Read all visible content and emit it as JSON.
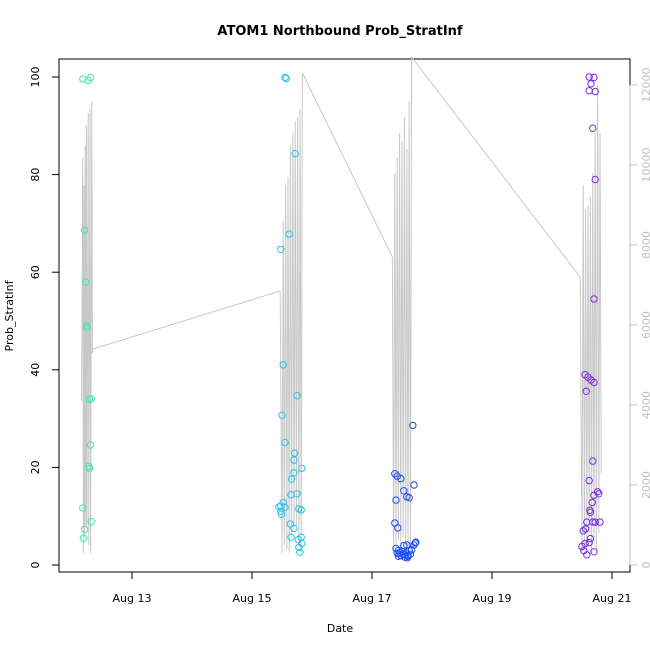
{
  "chart_data": {
    "type": "scatter",
    "title": "ATOM1 Northbound Prob_StratInf",
    "xlabel": "Date",
    "ylabel": "Prob_StratInf",
    "x_ticks": [
      {
        "day": 13,
        "label": "Aug 13"
      },
      {
        "day": 15,
        "label": "Aug 15"
      },
      {
        "day": 17,
        "label": "Aug 17"
      },
      {
        "day": 19,
        "label": "Aug 19"
      },
      {
        "day": 21,
        "label": "Aug 21"
      }
    ],
    "xlim": [
      12.0,
      21.2
    ],
    "ylim": [
      0,
      100
    ],
    "y_ticks": [
      0,
      20,
      40,
      60,
      80,
      100
    ],
    "y2lim": [
      0,
      12500
    ],
    "y2_ticks": [
      0,
      2000,
      4000,
      6000,
      8000,
      10000,
      12000
    ],
    "line_color": "#c8c8c8",
    "groups": [
      {
        "color": "#3be8b0",
        "points": [
          [
            12.18,
            99.6
          ],
          [
            12.27,
            99.3
          ],
          [
            12.31,
            99.9
          ],
          [
            12.21,
            68.6
          ],
          [
            12.23,
            58.0
          ],
          [
            12.24,
            49.0
          ],
          [
            12.25,
            48.6
          ],
          [
            12.29,
            33.9
          ],
          [
            12.32,
            34.1
          ],
          [
            12.31,
            24.6
          ],
          [
            12.28,
            20.2
          ],
          [
            12.29,
            19.8
          ],
          [
            12.18,
            11.7
          ],
          [
            12.32,
            8.9
          ],
          [
            12.21,
            7.3
          ],
          [
            12.19,
            5.5
          ]
        ],
        "line": [
          [
            12.16,
            4100
          ],
          [
            12.18,
            10200
          ],
          [
            12.19,
            300
          ],
          [
            12.2,
            9500
          ],
          [
            12.21,
            700
          ],
          [
            12.22,
            10500
          ],
          [
            12.23,
            1000
          ],
          [
            12.24,
            11000
          ],
          [
            12.25,
            900
          ],
          [
            12.27,
            11300
          ],
          [
            12.28,
            500
          ],
          [
            12.3,
            11400
          ],
          [
            12.31,
            300
          ],
          [
            12.33,
            11600
          ],
          [
            12.34,
            5300
          ],
          [
            12.35,
            5400
          ]
        ]
      },
      {
        "color": "#2ac2ec",
        "points": [
          [
            15.55,
            99.9
          ],
          [
            15.57,
            99.7
          ],
          [
            15.72,
            84.3
          ],
          [
            15.62,
            67.8
          ],
          [
            15.48,
            64.7
          ],
          [
            15.52,
            41.0
          ],
          [
            15.75,
            34.7
          ],
          [
            15.5,
            30.7
          ],
          [
            15.55,
            25.1
          ],
          [
            15.71,
            22.9
          ],
          [
            15.7,
            21.5
          ],
          [
            15.83,
            19.8
          ],
          [
            15.7,
            18.9
          ],
          [
            15.66,
            17.6
          ],
          [
            15.75,
            14.6
          ],
          [
            15.65,
            14.4
          ],
          [
            15.52,
            12.8
          ],
          [
            15.48,
            12.1
          ],
          [
            15.55,
            11.8
          ],
          [
            15.45,
            11.9
          ],
          [
            15.78,
            11.5
          ],
          [
            15.82,
            11.3
          ],
          [
            15.48,
            11.0
          ],
          [
            15.49,
            10.4
          ],
          [
            15.64,
            8.4
          ],
          [
            15.7,
            7.5
          ],
          [
            15.65,
            5.7
          ],
          [
            15.77,
            5.2
          ],
          [
            15.82,
            5.7
          ],
          [
            15.83,
            4.4
          ],
          [
            15.78,
            3.6
          ],
          [
            15.8,
            2.6
          ]
        ],
        "line": [
          [
            15.47,
            6850
          ],
          [
            15.5,
            300
          ],
          [
            15.52,
            8600
          ],
          [
            15.54,
            500
          ],
          [
            15.56,
            9500
          ],
          [
            15.58,
            400
          ],
          [
            15.6,
            9700
          ],
          [
            15.62,
            300
          ],
          [
            15.64,
            10500
          ],
          [
            15.66,
            700
          ],
          [
            15.68,
            10800
          ],
          [
            15.7,
            900
          ],
          [
            15.72,
            11100
          ],
          [
            15.74,
            1000
          ],
          [
            15.76,
            11200
          ],
          [
            15.78,
            500
          ],
          [
            15.8,
            11400
          ],
          [
            15.82,
            300
          ],
          [
            15.84,
            12300
          ]
        ]
      },
      {
        "color": "#1f4ff0",
        "points": [
          [
            17.68,
            28.6
          ],
          [
            17.38,
            18.7
          ],
          [
            17.42,
            18.2
          ],
          [
            17.48,
            17.7
          ],
          [
            17.7,
            16.4
          ],
          [
            17.53,
            15.2
          ],
          [
            17.58,
            14.0
          ],
          [
            17.62,
            13.8
          ],
          [
            17.4,
            13.3
          ],
          [
            17.38,
            8.6
          ],
          [
            17.43,
            7.6
          ],
          [
            17.73,
            4.7
          ],
          [
            17.72,
            4.5
          ],
          [
            17.7,
            4.1
          ],
          [
            17.58,
            4.1
          ],
          [
            17.53,
            4.0
          ],
          [
            17.4,
            3.4
          ],
          [
            17.44,
            3.0
          ],
          [
            17.66,
            3.1
          ],
          [
            17.62,
            3.0
          ],
          [
            17.5,
            2.8
          ],
          [
            17.47,
            2.6
          ],
          [
            17.57,
            2.5
          ],
          [
            17.42,
            2.4
          ],
          [
            17.45,
            2.3
          ],
          [
            17.52,
            2.2
          ],
          [
            17.55,
            2.1
          ],
          [
            17.6,
            2.0
          ],
          [
            17.64,
            2.2
          ],
          [
            17.48,
            1.9
          ],
          [
            17.44,
            1.8
          ],
          [
            17.55,
            1.6
          ],
          [
            17.59,
            1.5
          ],
          [
            17.6,
            1.8
          ]
        ],
        "line": [
          [
            17.34,
            7700
          ],
          [
            17.36,
            300
          ],
          [
            17.38,
            9800
          ],
          [
            17.4,
            500
          ],
          [
            17.42,
            10200
          ],
          [
            17.44,
            600
          ],
          [
            17.46,
            10800
          ],
          [
            17.48,
            400
          ],
          [
            17.5,
            10600
          ],
          [
            17.52,
            700
          ],
          [
            17.54,
            11200
          ],
          [
            17.56,
            500
          ],
          [
            17.58,
            10400
          ],
          [
            17.6,
            300
          ],
          [
            17.62,
            11600
          ],
          [
            17.64,
            400
          ],
          [
            17.66,
            12700
          ]
        ]
      },
      {
        "color": "#7b2be6",
        "points": [
          [
            20.62,
            100.0
          ],
          [
            20.7,
            99.9
          ],
          [
            20.65,
            98.6
          ],
          [
            20.62,
            97.2
          ],
          [
            20.72,
            97.0
          ],
          [
            20.68,
            89.5
          ],
          [
            20.72,
            79.0
          ],
          [
            20.7,
            54.5
          ],
          [
            20.55,
            39.0
          ],
          [
            20.6,
            38.5
          ],
          [
            20.65,
            37.9
          ],
          [
            20.7,
            37.4
          ],
          [
            20.57,
            35.6
          ],
          [
            20.68,
            21.3
          ],
          [
            20.62,
            17.3
          ],
          [
            20.76,
            15.0
          ],
          [
            20.78,
            14.6
          ],
          [
            20.7,
            14.3
          ],
          [
            20.67,
            12.8
          ],
          [
            20.63,
            11.2
          ],
          [
            20.64,
            10.8
          ],
          [
            20.68,
            8.8
          ],
          [
            20.72,
            8.8
          ],
          [
            20.8,
            8.8
          ],
          [
            20.58,
            8.8
          ],
          [
            20.56,
            7.4
          ],
          [
            20.52,
            7.0
          ],
          [
            20.64,
            5.4
          ],
          [
            20.62,
            4.6
          ],
          [
            20.55,
            4.4
          ],
          [
            20.5,
            3.8
          ],
          [
            20.53,
            2.9
          ],
          [
            20.7,
            2.7
          ],
          [
            20.58,
            2.1
          ]
        ],
        "line": [
          [
            20.47,
            7200
          ],
          [
            20.5,
            300
          ],
          [
            20.52,
            9500
          ],
          [
            20.54,
            500
          ],
          [
            20.56,
            8900
          ],
          [
            20.58,
            400
          ],
          [
            20.6,
            9000
          ],
          [
            20.62,
            800
          ],
          [
            20.64,
            9200
          ],
          [
            20.66,
            300
          ],
          [
            20.68,
            9800
          ],
          [
            20.7,
            600
          ],
          [
            20.72,
            10800
          ],
          [
            20.74,
            400
          ],
          [
            20.76,
            12000
          ],
          [
            20.78,
            800
          ],
          [
            20.8,
            10800
          ],
          [
            20.82,
            2300
          ]
        ]
      }
    ],
    "connectors": [
      [
        [
          12.35,
          5400
        ],
        [
          15.47,
          6850
        ]
      ],
      [
        [
          15.84,
          12300
        ],
        [
          17.34,
          7700
        ]
      ],
      [
        [
          17.66,
          12700
        ],
        [
          20.47,
          7200
        ]
      ]
    ]
  }
}
